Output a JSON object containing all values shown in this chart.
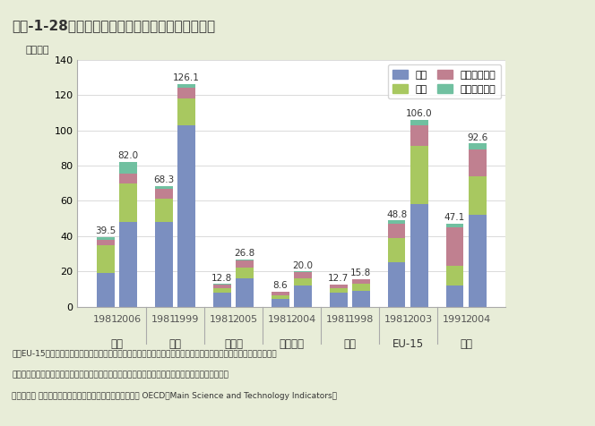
{
  "title": "第１-1-28図　日本及び主要国等の研究者数の推移",
  "ylabel": "（万人）",
  "ylim": [
    0,
    140
  ],
  "yticks": [
    0,
    20,
    40,
    60,
    80,
    100,
    120,
    140
  ],
  "bg_color": "#e8edd8",
  "plot_bg_color": "#ffffff",
  "header_color": "#c8d45a",
  "colors": {
    "産業": "#7b8fc0",
    "大学": "#a8c860",
    "政府研究機関": "#c08090",
    "民営研究機関": "#70c0a0"
  },
  "groups": [
    {
      "label": "日本",
      "years": [
        "1981",
        "2006"
      ],
      "totals": [
        39.5,
        82.0
      ],
      "data": [
        {
          "産業": 19.0,
          "大学": 16.0,
          "政府研究機関": 3.0,
          "民営研究機関": 1.5
        },
        {
          "産業": 48.0,
          "大学": 22.0,
          "政府研究機関": 5.5,
          "民営研究機関": 6.5
        }
      ]
    },
    {
      "label": "米国",
      "years": [
        "1981",
        "1999"
      ],
      "totals": [
        68.3,
        126.1
      ],
      "data": [
        {
          "産業": 48.0,
          "大学": 13.0,
          "政府研究機関": 6.0,
          "民営研究機関": 1.3
        },
        {
          "産業": 103.0,
          "大学": 15.0,
          "政府研究機関": 6.0,
          "民営研究機関": 2.1
        }
      ]
    },
    {
      "label": "ドイツ",
      "years": [
        "1981",
        "2005"
      ],
      "totals": [
        12.8,
        26.8
      ],
      "data": [
        {
          "産業": 8.0,
          "大学": 2.5,
          "政府研究機関": 2.0,
          "民営研究機関": 0.3
        },
        {
          "産業": 16.0,
          "大学": 6.0,
          "政府研究機関": 4.0,
          "民営研究機関": 0.8
        }
      ]
    },
    {
      "label": "フランス",
      "years": [
        "1981",
        "2004"
      ],
      "totals": [
        8.6,
        20.0
      ],
      "data": [
        {
          "産業": 4.5,
          "大学": 2.0,
          "政府研究機関": 1.8,
          "民営研究機関": 0.3
        },
        {
          "産業": 12.0,
          "大学": 4.0,
          "政府研究機関": 3.5,
          "民営研究機関": 0.5
        }
      ]
    },
    {
      "label": "英国",
      "years": [
        "1981",
        "1998"
      ],
      "totals": [
        12.7,
        15.8
      ],
      "data": [
        {
          "産業": 8.0,
          "大学": 2.5,
          "政府研究機関": 2.0,
          "民営研究機関": 0.2
        },
        {
          "産業": 9.0,
          "大学": 4.0,
          "政府研究機関": 2.5,
          "民営研究機関": 0.3
        }
      ]
    },
    {
      "label": "EU-15",
      "years": [
        "1981",
        "2003"
      ],
      "totals": [
        48.8,
        106.0
      ],
      "data": [
        {
          "産業": 25.0,
          "大学": 14.0,
          "政府研究機関": 8.0,
          "民営研究機関": 1.8
        },
        {
          "産業": 58.0,
          "大学": 33.0,
          "政府研究機関": 12.0,
          "民営研究機関": 3.0
        }
      ]
    },
    {
      "label": "中国",
      "years": [
        "1991",
        "2004"
      ],
      "totals": [
        47.1,
        92.6
      ],
      "data": [
        {
          "産業": 12.0,
          "大学": 11.0,
          "政府研究機関": 22.0,
          "民営研究機関": 2.1
        },
        {
          "産業": 52.0,
          "大学": 22.0,
          "政府研究機関": 15.0,
          "民営研究機関": 3.6
        }
      ]
    }
  ],
  "legend_labels": [
    "産業",
    "大学",
    "政府研究機関",
    "民営研究機関"
  ],
  "footer_note1": "注）EU-15の構成国は、ベルギー、ドイツ、フランス、イタリア、ルクセンブルク、オランダ、デンマーク、アイルラ",
  "footer_note2": "　　ンド、英国、ギリシャ、ポルトガル、スペイン、オーストリア、フィンランド、スウェーデン。",
  "footer_source": "資料：日本 総務省「科学技術研究調査報告」、その他の国 OECD「Main Science and Technology Indicators」"
}
